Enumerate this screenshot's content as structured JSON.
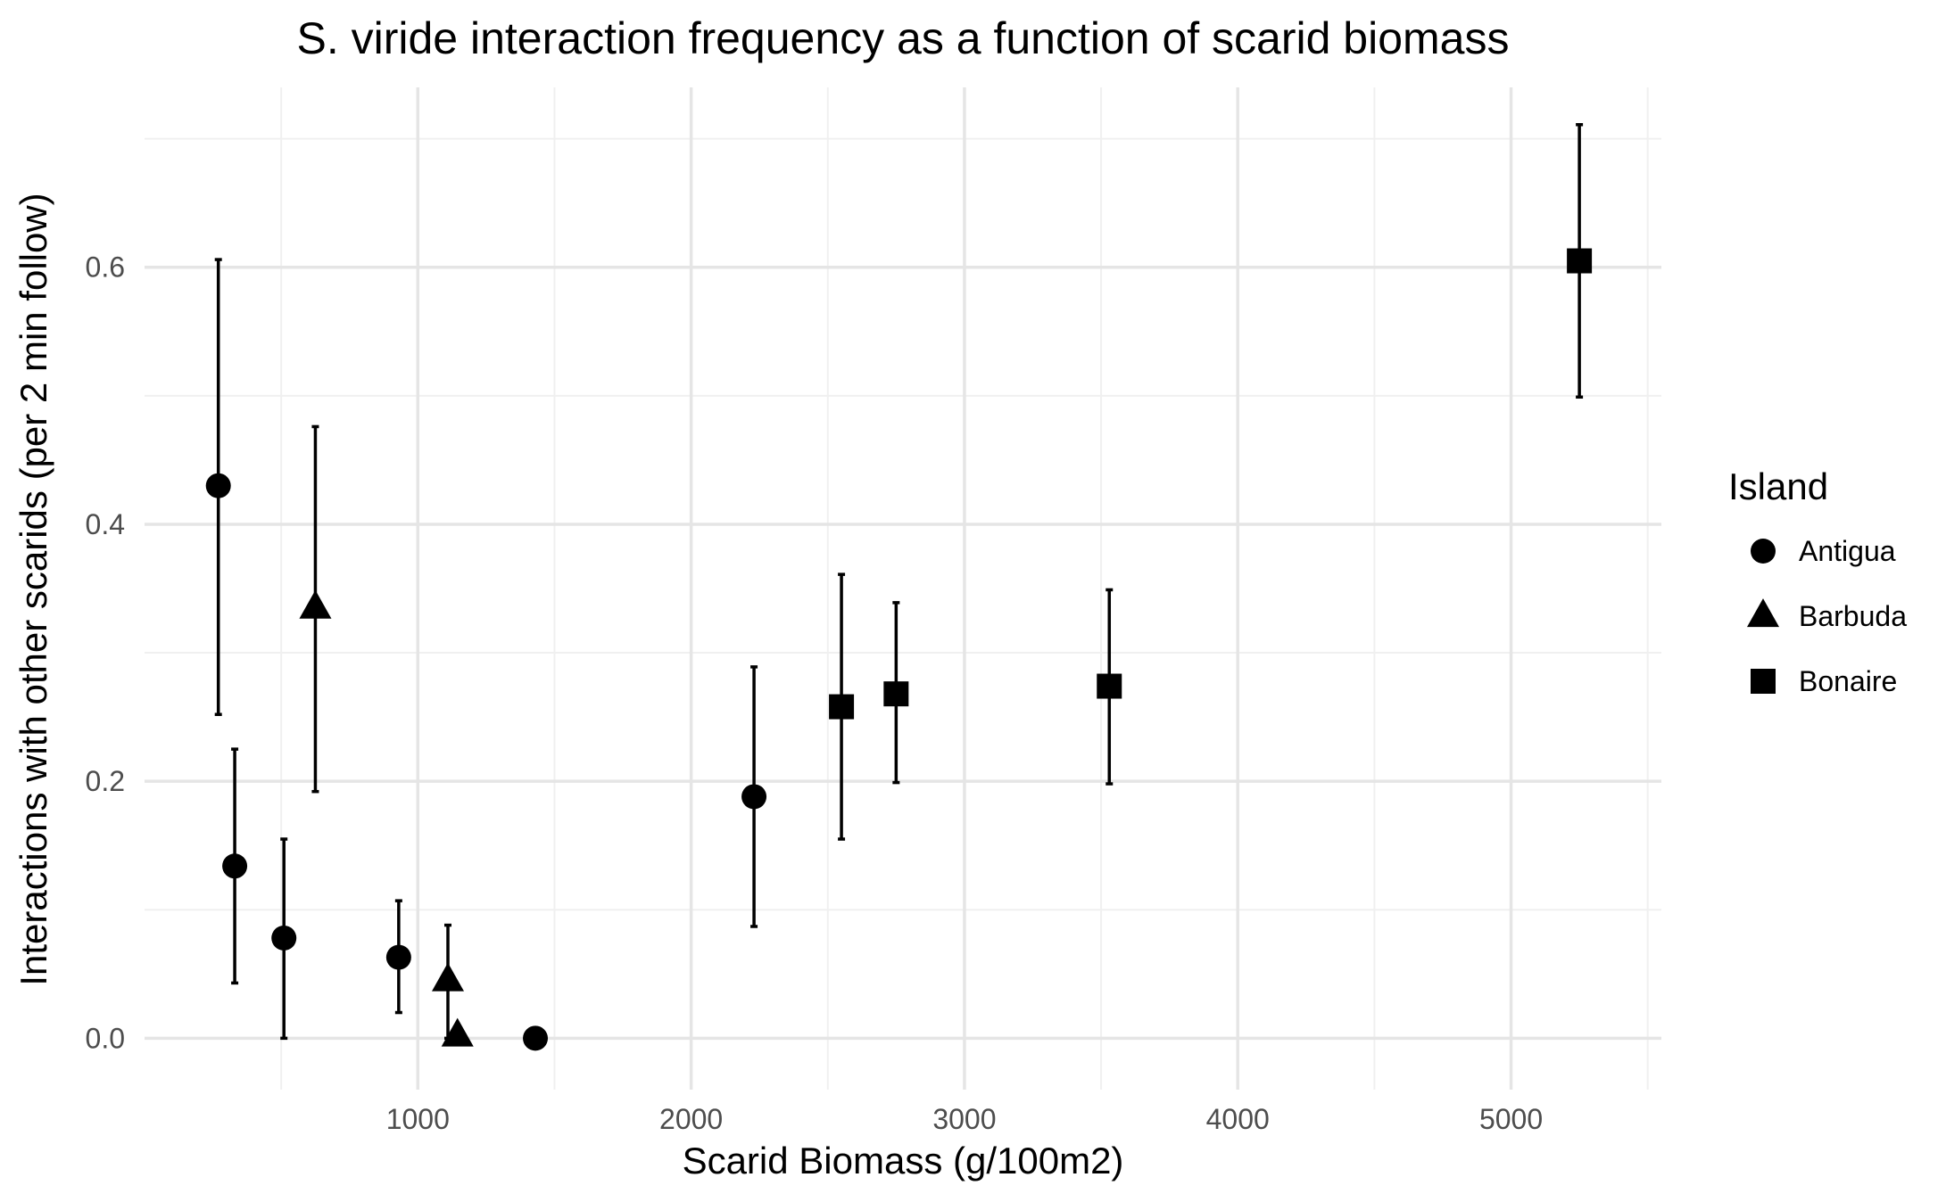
{
  "chart_data": {
    "type": "scatter",
    "title": "S. viride interaction frequency as a function of scarid biomass",
    "xlabel": "Scarid Biomass (g/100m2)",
    "ylabel": "Interactions with other scarids (per 2 min follow)",
    "xlim": [
      0,
      5550
    ],
    "ylim": [
      -0.04,
      0.74
    ],
    "x_ticks": [
      1000,
      2000,
      3000,
      4000,
      5000
    ],
    "y_ticks": [
      0.0,
      0.2,
      0.4,
      0.6
    ],
    "x_tick_labels": [
      "1000",
      "2000",
      "3000",
      "4000",
      "5000"
    ],
    "y_tick_labels": [
      "0.0",
      "0.2",
      "0.4",
      "0.6"
    ],
    "grid": true,
    "legend": {
      "title": "Island",
      "position": "right"
    },
    "series": [
      {
        "name": "Antigua",
        "shape": "circle",
        "color": "#000000",
        "points": [
          {
            "x": 270,
            "y": 0.43,
            "ymin": 0.252,
            "ymax": 0.606
          },
          {
            "x": 330,
            "y": 0.134,
            "ymin": 0.043,
            "ymax": 0.225
          },
          {
            "x": 510,
            "y": 0.078,
            "ymin": 0.0,
            "ymax": 0.155
          },
          {
            "x": 930,
            "y": 0.063,
            "ymin": 0.02,
            "ymax": 0.107
          },
          {
            "x": 1430,
            "y": 0.0
          },
          {
            "x": 2230,
            "y": 0.188,
            "ymin": 0.087,
            "ymax": 0.289
          }
        ]
      },
      {
        "name": "Barbuda",
        "shape": "triangle",
        "color": "#000000",
        "points": [
          {
            "x": 625,
            "y": 0.335,
            "ymin": 0.192,
            "ymax": 0.476
          },
          {
            "x": 1110,
            "y": 0.045,
            "ymin": 0.0,
            "ymax": 0.088
          },
          {
            "x": 1145,
            "y": 0.002
          }
        ]
      },
      {
        "name": "Bonaire",
        "shape": "square",
        "color": "#000000",
        "points": [
          {
            "x": 2550,
            "y": 0.258,
            "ymin": 0.155,
            "ymax": 0.361
          },
          {
            "x": 2750,
            "y": 0.268,
            "ymin": 0.199,
            "ymax": 0.339
          },
          {
            "x": 3530,
            "y": 0.274,
            "ymin": 0.198,
            "ymax": 0.349
          },
          {
            "x": 5250,
            "y": 0.605,
            "ymin": 0.499,
            "ymax": 0.711
          }
        ]
      }
    ]
  }
}
